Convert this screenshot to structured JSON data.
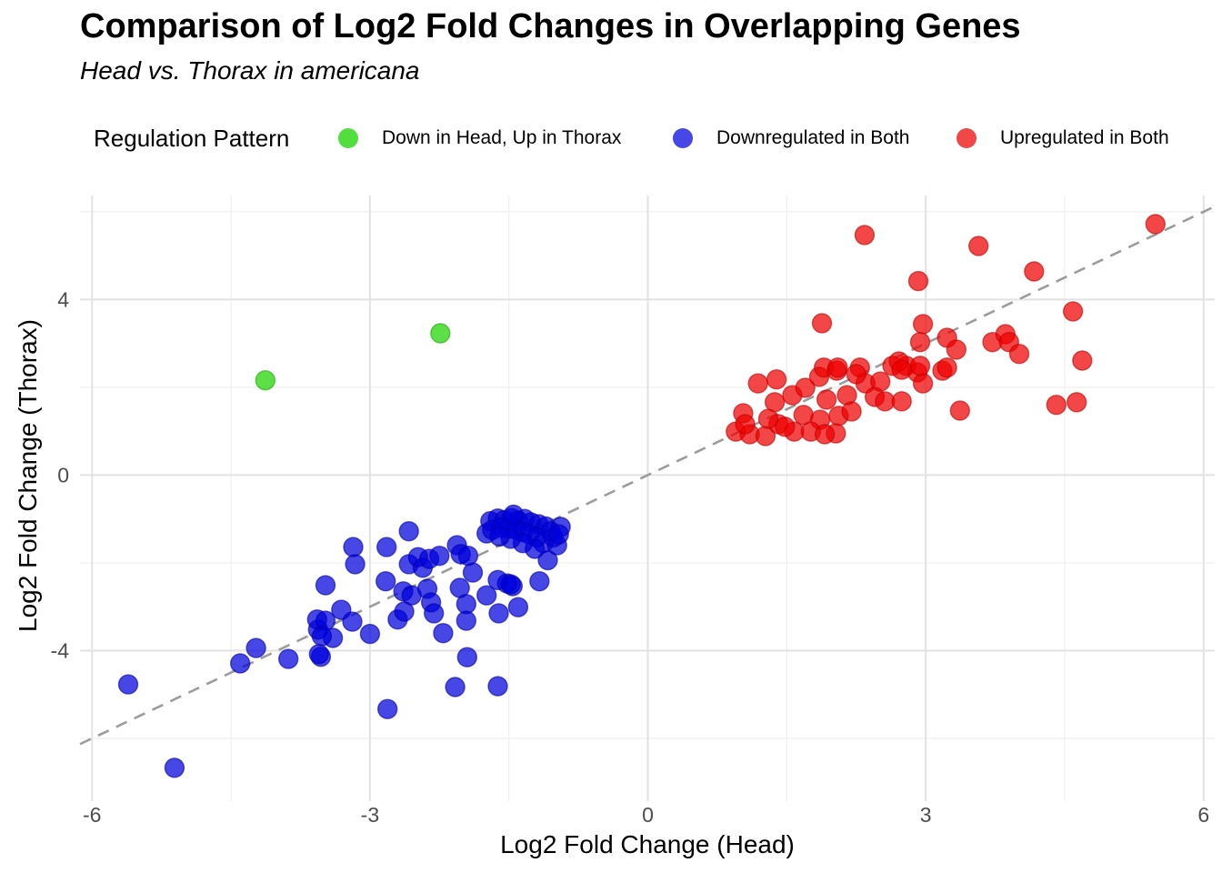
{
  "header": {
    "title": "Comparison of Log2 Fold Changes in Overlapping Genes",
    "subtitle": "Head vs. Thorax in americana"
  },
  "legend": {
    "title": "Regulation Pattern",
    "items": [
      {
        "label": "Down in Head, Up in Thorax",
        "color": "#53de40"
      },
      {
        "label": "Downregulated in Both",
        "color": "#4747e6"
      },
      {
        "label": "Upregulated in Both",
        "color": "#f24747"
      }
    ]
  },
  "chart_data": {
    "type": "scatter",
    "title": "Comparison of Log2 Fold Changes in Overlapping Genes",
    "subtitle": "Head vs. Thorax in americana",
    "xlabel": "Log2 Fold Change (Head)",
    "ylabel": "Log2 Fold Change (Thorax)",
    "xlim": [
      -6.13,
      6.12
    ],
    "ylim": [
      -7.43,
      6.37
    ],
    "x_ticks": [
      -6,
      -3,
      0,
      3,
      6
    ],
    "x_minor_ticks": [
      -4.5,
      -1.5,
      1.5,
      4.5
    ],
    "y_ticks": [
      -4,
      0,
      4
    ],
    "y_minor_ticks": [
      -6,
      -2,
      2,
      6
    ],
    "grid": true,
    "legend_position": "top",
    "reference_line": {
      "kind": "identity",
      "slope": 1,
      "intercept": 0,
      "style": "dashed",
      "color": "#9c9c9c"
    },
    "point_style": {
      "radius": 10.5,
      "fill_opacity": 0.72
    },
    "tick_color": "#4d4d4d",
    "grid_major_color": "#e2e2e2",
    "grid_minor_color": "#efefef",
    "series": [
      {
        "name": "Down in Head, Up in Thorax",
        "color": "#1fd400",
        "stroke": "#15a800",
        "points": [
          [
            -4.13,
            2.16
          ],
          [
            -2.24,
            3.23
          ]
        ]
      },
      {
        "name": "Downregulated in Both",
        "color": "#0000dd",
        "stroke": "#0000aa",
        "points": [
          [
            -5.61,
            -4.77
          ],
          [
            -5.11,
            -6.67
          ],
          [
            -4.4,
            -4.29
          ],
          [
            -4.23,
            -3.94
          ],
          [
            -3.88,
            -4.19
          ],
          [
            -3.53,
            -4.14
          ],
          [
            -3.4,
            -3.71
          ],
          [
            -3.56,
            -3.52
          ],
          [
            -3.0,
            -3.62
          ],
          [
            -2.7,
            -3.29
          ],
          [
            -2.81,
            -5.33
          ],
          [
            -2.08,
            -4.83
          ],
          [
            -1.62,
            -4.81
          ],
          [
            -1.95,
            -4.15
          ],
          [
            -2.21,
            -3.6
          ],
          [
            -3.48,
            -2.51
          ],
          [
            -3.18,
            -1.64
          ],
          [
            -3.16,
            -2.03
          ],
          [
            -2.82,
            -1.64
          ],
          [
            -2.58,
            -1.28
          ],
          [
            -2.58,
            -2.03
          ],
          [
            -2.48,
            -1.87
          ],
          [
            -2.43,
            -2.11
          ],
          [
            -2.36,
            -1.91
          ],
          [
            -2.25,
            -1.84
          ],
          [
            -2.06,
            -1.6
          ],
          [
            -2.02,
            -1.8
          ],
          [
            -2.83,
            -2.42
          ],
          [
            -2.64,
            -2.65
          ],
          [
            -2.55,
            -2.74
          ],
          [
            -2.38,
            -2.59
          ],
          [
            -2.34,
            -2.9
          ],
          [
            -2.31,
            -3.15
          ],
          [
            -2.63,
            -3.11
          ],
          [
            -2.03,
            -2.57
          ],
          [
            -1.96,
            -2.94
          ],
          [
            -1.96,
            -3.32
          ],
          [
            -1.74,
            -2.74
          ],
          [
            -1.61,
            -3.15
          ],
          [
            -1.52,
            -2.47
          ],
          [
            -1.46,
            -2.53
          ],
          [
            -1.4,
            -3.01
          ],
          [
            -1.17,
            -2.42
          ],
          [
            -3.57,
            -3.29
          ],
          [
            -3.48,
            -3.32
          ],
          [
            -3.52,
            -3.67
          ],
          [
            -3.31,
            -3.07
          ],
          [
            -3.19,
            -3.34
          ],
          [
            -3.55,
            -4.08
          ],
          [
            -1.89,
            -2.22
          ],
          [
            -1.62,
            -2.39
          ],
          [
            -1.48,
            -2.49
          ],
          [
            -1.94,
            -1.84
          ],
          [
            -1.74,
            -1.33
          ],
          [
            -1.08,
            -1.94
          ],
          [
            -1.7,
            -1.05
          ],
          [
            -1.62,
            -0.99
          ],
          [
            -1.55,
            -1.03
          ],
          [
            -1.47,
            -0.98
          ],
          [
            -1.4,
            -1.04
          ],
          [
            -1.33,
            -1.0
          ],
          [
            -1.26,
            -1.08
          ],
          [
            -1.18,
            -1.12
          ],
          [
            -1.1,
            -1.17
          ],
          [
            -1.05,
            -1.28
          ],
          [
            -1.68,
            -1.25
          ],
          [
            -1.58,
            -1.2
          ],
          [
            -1.5,
            -1.22
          ],
          [
            -1.42,
            -1.25
          ],
          [
            -1.35,
            -1.3
          ],
          [
            -1.28,
            -1.35
          ],
          [
            -1.2,
            -1.42
          ],
          [
            -1.13,
            -1.55
          ],
          [
            -1.22,
            -1.68
          ],
          [
            -1.35,
            -1.55
          ],
          [
            -1.48,
            -1.45
          ],
          [
            -1.6,
            -1.4
          ],
          [
            -1.02,
            -1.42
          ],
          [
            -0.98,
            -1.6
          ],
          [
            -1.45,
            -0.9
          ],
          [
            -0.94,
            -1.18
          ],
          [
            -0.96,
            -1.35
          ]
        ]
      },
      {
        "name": "Upregulated in Both",
        "color": "#ee0000",
        "stroke": "#c00000",
        "points": [
          [
            0.95,
            0.99
          ],
          [
            1.03,
            1.41
          ],
          [
            1.1,
            0.93
          ],
          [
            1.19,
            2.09
          ],
          [
            1.27,
            0.89
          ],
          [
            1.37,
            1.66
          ],
          [
            1.39,
            2.18
          ],
          [
            1.41,
            1.16
          ],
          [
            1.56,
            1.82
          ],
          [
            1.58,
            0.99
          ],
          [
            1.68,
            1.37
          ],
          [
            1.7,
            1.99
          ],
          [
            1.85,
            2.24
          ],
          [
            1.86,
            1.26
          ],
          [
            1.9,
            2.45
          ],
          [
            1.93,
            1.72
          ],
          [
            2.04,
            2.38
          ],
          [
            2.06,
            1.35
          ],
          [
            2.03,
            0.95
          ],
          [
            2.15,
            1.82
          ],
          [
            2.2,
            1.45
          ],
          [
            2.29,
            2.45
          ],
          [
            2.35,
            2.09
          ],
          [
            2.45,
            1.78
          ],
          [
            2.51,
            2.13
          ],
          [
            2.56,
            1.68
          ],
          [
            2.64,
            2.49
          ],
          [
            2.74,
            1.68
          ],
          [
            2.79,
            2.49
          ],
          [
            2.91,
            2.34
          ],
          [
            2.97,
            2.09
          ],
          [
            3.18,
            2.38
          ],
          [
            3.37,
            1.47
          ],
          [
            1.76,
            0.99
          ],
          [
            1.91,
            0.93
          ],
          [
            1.3,
            1.28
          ],
          [
            1.48,
            1.1
          ],
          [
            1.05,
            1.16
          ],
          [
            2.34,
            5.47
          ],
          [
            3.57,
            5.22
          ],
          [
            5.48,
            5.72
          ],
          [
            4.17,
            4.64
          ],
          [
            2.92,
            4.42
          ],
          [
            4.59,
            3.73
          ],
          [
            4.69,
            2.61
          ],
          [
            1.88,
            3.46
          ],
          [
            2.97,
            3.44
          ],
          [
            2.94,
            3.03
          ],
          [
            3.23,
            3.13
          ],
          [
            3.33,
            2.86
          ],
          [
            3.72,
            3.03
          ],
          [
            3.86,
            3.21
          ],
          [
            3.9,
            3.03
          ],
          [
            4.01,
            2.76
          ],
          [
            2.05,
            2.45
          ],
          [
            2.71,
            2.59
          ],
          [
            2.74,
            2.4
          ],
          [
            2.94,
            2.49
          ],
          [
            3.23,
            2.45
          ],
          [
            2.25,
            2.3
          ],
          [
            4.41,
            1.6
          ],
          [
            4.63,
            1.66
          ]
        ]
      }
    ]
  }
}
